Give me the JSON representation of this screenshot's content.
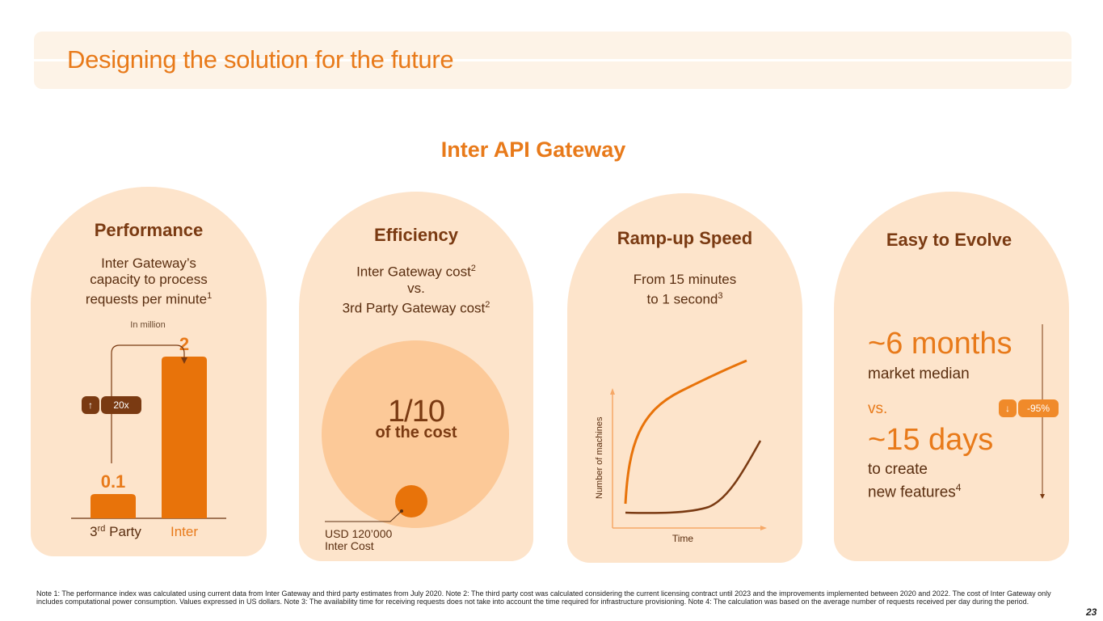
{
  "header": {
    "title": "Designing the solution for the future"
  },
  "section": {
    "title": "Inter API Gateway"
  },
  "performance": {
    "title": "Performance",
    "subtitle_l1": "Inter Gateway’s",
    "subtitle_l2": "capacity to process",
    "subtitle_l3": "requests per minute",
    "subtitle_sup": "1",
    "unit": "In million",
    "multiplier_icon": "up-arrow-icon",
    "multiplier_arrow": "↑",
    "multiplier": "20x",
    "colors": {
      "bar": "#e8730a",
      "badge": "#7a3a12"
    }
  },
  "efficiency": {
    "title": "Efficiency",
    "line1": "Inter Gateway cost",
    "line1_sup": "2",
    "line2": "vs.",
    "line3": "3rd Party Gateway cost",
    "line3_sup": "2",
    "ratio": "1/10",
    "ratio_caption": "of the cost",
    "cost_label_l1": "USD 120’000",
    "cost_label_l2": "Inter Cost"
  },
  "rampup": {
    "title": "Ramp-up Speed",
    "line1": "From 15 minutes",
    "line2": "to 1 second",
    "line2_sup": "3",
    "y_axis": "Number of machines",
    "x_axis": "Time"
  },
  "evolve": {
    "title": "Easy to Evolve",
    "market_value": "~6 months",
    "market_label": "market median",
    "vs": "vs.",
    "inter_value": "~15 days",
    "inter_label_l1": "to create",
    "inter_label_l2": "new features",
    "inter_label_sup": "4",
    "reduction_icon": "down-arrow-icon",
    "reduction_arrow": "↓",
    "reduction": "-95%"
  },
  "chart_data": {
    "type": "bar",
    "title": "Inter Gateway’s capacity to process requests per minute",
    "ylabel": "In million",
    "categories": [
      "3rd Party",
      "Inter"
    ],
    "category_labels": [
      {
        "base": "3",
        "sup": "rd",
        "rest": " Party"
      },
      {
        "base": "Inter",
        "sup": "",
        "rest": ""
      }
    ],
    "values": [
      0.1,
      2
    ],
    "value_labels": [
      "0.1",
      "2"
    ],
    "ylim": [
      0,
      2.2
    ]
  },
  "footnote": "Note 1: The performance index was calculated using current data from Inter Gateway and third party estimates from July 2020. Note 2: The third party cost was calculated considering the current licensing contract until 2023 and the improvements implemented between 2020 and 2022. The cost of Inter Gateway only includes computational power consumption. Values expressed in US dollars. Note 3: The availability time for receiving requests does not take into account the time required for infrastructure provisioning. Note 4: The calculation was based on the average number of requests received per day during the period.",
  "page_number": "23"
}
